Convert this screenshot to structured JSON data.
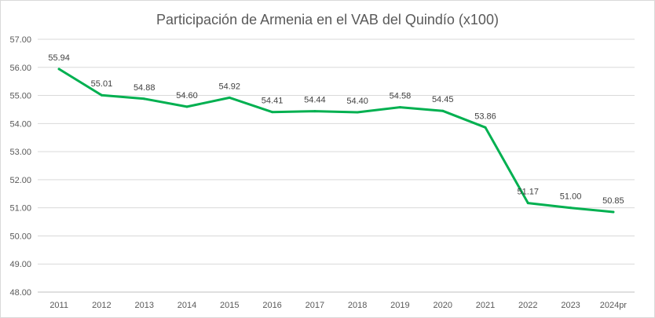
{
  "chart_data": {
    "type": "line",
    "title": "Participación de Armenia en el VAB del Quindío (x100)",
    "xlabel": "",
    "ylabel": "",
    "categories": [
      "2011",
      "2012",
      "2013",
      "2014",
      "2015",
      "2016",
      "2017",
      "2018",
      "2019",
      "2020",
      "2021",
      "2022",
      "2023",
      "2024pr"
    ],
    "series": [
      {
        "values": [
          55.94,
          55.01,
          54.88,
          54.6,
          54.92,
          54.41,
          54.44,
          54.4,
          54.58,
          54.45,
          53.86,
          51.17,
          51.0,
          50.85
        ],
        "value_labels": [
          "55.94",
          "55.01",
          "54.88",
          "54.60",
          "54.92",
          "54.41",
          "54.44",
          "54.40",
          "54.58",
          "54.45",
          "53.86",
          "51.17",
          "51.00",
          "50.85"
        ],
        "color": "#00b050"
      }
    ],
    "ylim": [
      48,
      57
    ],
    "yticks": [
      "48.00",
      "49.00",
      "50.00",
      "51.00",
      "52.00",
      "53.00",
      "54.00",
      "55.00",
      "56.00",
      "57.00"
    ],
    "grid": true,
    "legend": "none"
  }
}
